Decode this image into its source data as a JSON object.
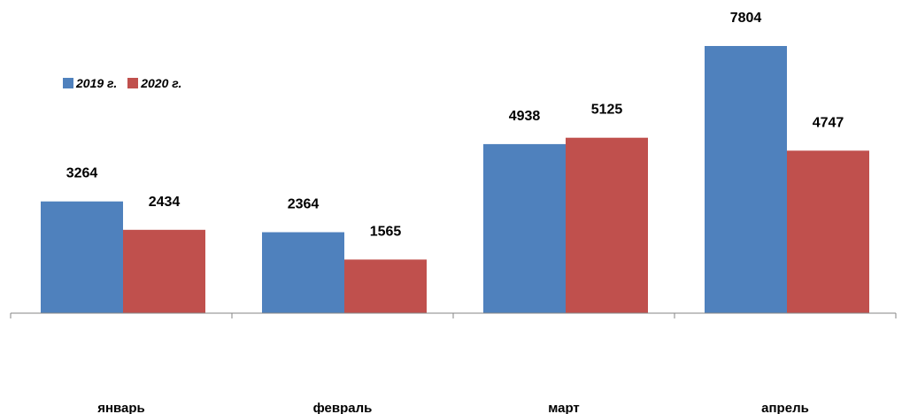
{
  "chart_data": {
    "type": "bar",
    "categories": [
      "январь",
      "февраль",
      "март",
      "апрель"
    ],
    "series": [
      {
        "name": "2019 г.",
        "color": "#4F81BD",
        "values": [
          3264,
          2364,
          4938,
          7804
        ]
      },
      {
        "name": "2020 г.",
        "color": "#C0504D",
        "values": [
          2434,
          1565,
          5125,
          4747
        ]
      }
    ],
    "title": "",
    "xlabel": "",
    "ylabel": "",
    "ylim": [
      0,
      8000
    ],
    "grid": false,
    "legend": "top-left",
    "data_labels": true
  }
}
